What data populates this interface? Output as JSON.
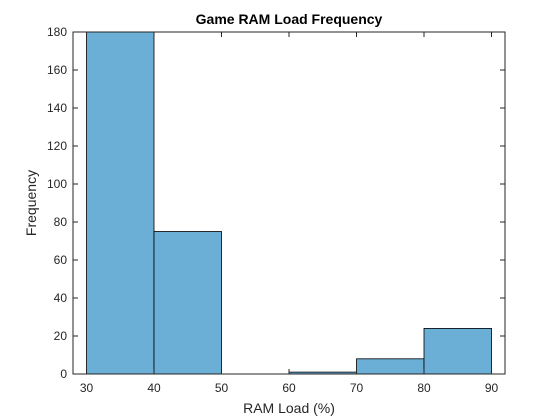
{
  "chart_data": {
    "type": "bar",
    "title": "Game RAM Load Frequency",
    "xlabel": "RAM Load (%)",
    "ylabel": "Frequency",
    "bin_edges": [
      30,
      40,
      50,
      60,
      70,
      80,
      90
    ],
    "values": [
      180,
      75,
      0,
      1,
      8,
      24
    ],
    "xlim": [
      28,
      92
    ],
    "ylim": [
      0,
      180
    ],
    "xticks": [
      30,
      40,
      50,
      60,
      70,
      80,
      90
    ],
    "yticks": [
      0,
      20,
      40,
      60,
      80,
      100,
      120,
      140,
      160,
      180
    ],
    "bar_color": "#6baed6",
    "bar_edge_color": "#000000",
    "grid": false,
    "box": true
  }
}
